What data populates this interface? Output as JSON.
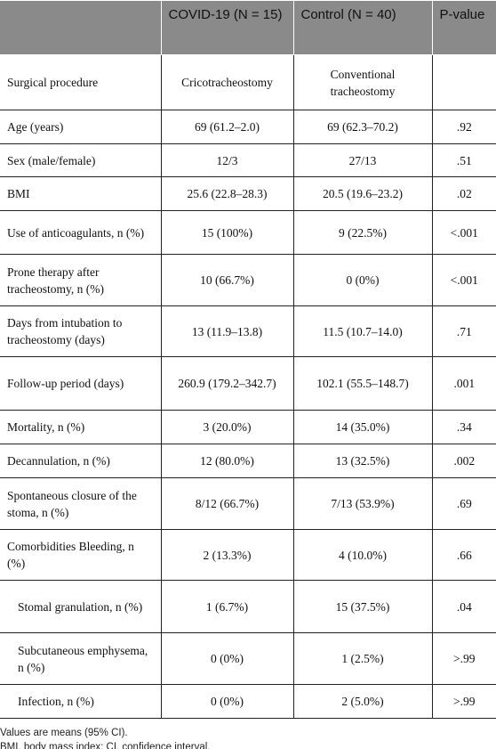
{
  "table": {
    "header": [
      "",
      "COVID-19 (N = 15)",
      "Control (N = 40)",
      "P-value"
    ],
    "rows": [
      [
        "Surgical procedure",
        "Cricotracheostomy",
        "Conventional tracheostomy",
        null
      ],
      [
        "Age (years)",
        "69 (61.2–2.0)",
        "69 (62.3–70.2)",
        ".92"
      ],
      [
        "Sex (male/female)",
        "12/3",
        "27/13",
        ".51"
      ],
      [
        "BMI",
        "25.6 (22.8–28.3)",
        "20.5 (19.6–23.2)",
        ".02"
      ],
      [
        "Use of anticoagulants, n (%)",
        "15 (100%)",
        "9 (22.5%)",
        "<.001"
      ],
      [
        "Prone therapy after tracheostomy, n (%)",
        "10 (66.7%)",
        "0 (0%)",
        "<.001"
      ],
      [
        "Days from intubation to tracheostomy (days)",
        "13 (11.9–13.8)",
        "11.5 (10.7–14.0)",
        ".71"
      ],
      [
        "Follow-up period (days)",
        "260.9 (179.2–342.7)",
        "102.1 (55.5–148.7)",
        ".001"
      ],
      [
        "Mortality, n (%)",
        "3 (20.0%)",
        "14 (35.0%)",
        ".34"
      ],
      [
        "Decannulation, n (%)",
        "12 (80.0%)",
        "13 (32.5%)",
        ".002"
      ],
      [
        "Spontaneous closure of the stoma, n (%)",
        "8/12 (66.7%)",
        "7/13 (53.9%)",
        ".69"
      ],
      [
        "Comorbidities Bleeding, n (%)",
        "2 (13.3%)",
        "4 (10.0%)",
        ".66"
      ],
      [
        "Stomal granulation, n (%)",
        "1 (6.7%)",
        "15 (37.5%)",
        ".04"
      ],
      [
        "Subcutaneous emphysema, n (%)",
        "0 (0%)",
        "1 (2.5%)",
        ">.99"
      ],
      [
        "Infection, n (%)",
        "0 (0%)",
        "2 (5.0%)",
        ">.99"
      ]
    ]
  },
  "footnotes": [
    "Values are means (95% CI).",
    "BMI, body mass index; CI, confidence interval."
  ]
}
